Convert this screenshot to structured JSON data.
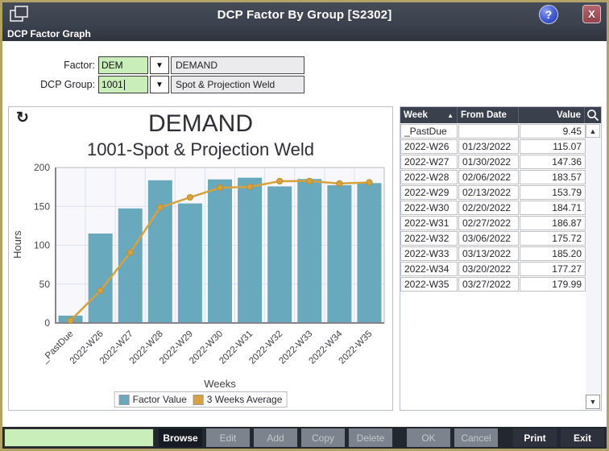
{
  "window": {
    "title": "DCP Factor By Group [S2302]",
    "banner": "DCP Factor Graph",
    "help_glyph": "?",
    "close_glyph": "X"
  },
  "form": {
    "factor": {
      "label": "Factor:",
      "code": "DEM",
      "description": "DEMAND"
    },
    "dcp_group": {
      "label": "DCP Group:",
      "code": "1001",
      "description": "Spot & Projection Weld"
    }
  },
  "chart_data": {
    "type": "bar",
    "title": "DEMAND",
    "subtitle": "1001-Spot & Projection Weld",
    "xlabel": "Weeks",
    "ylabel": "Hours",
    "ylim": [
      0,
      200
    ],
    "yticks": [
      0,
      50,
      100,
      150,
      200
    ],
    "grid": true,
    "legend_position": "bottom",
    "categories": [
      "_PastDue",
      "2022-W26",
      "2022-W27",
      "2022-W28",
      "2022-W29",
      "2022-W30",
      "2022-W31",
      "2022-W32",
      "2022-W33",
      "2022-W34",
      "2022-W35"
    ],
    "series": [
      {
        "name": "Factor Value",
        "type": "bar",
        "color": "#69a9bd",
        "values": [
          9.45,
          115.07,
          147.36,
          183.57,
          153.79,
          184.71,
          186.87,
          175.72,
          185.2,
          177.27,
          179.99
        ]
      },
      {
        "name": "3 Weeks Average",
        "type": "line",
        "color": "#d7a23c",
        "values": [
          3.15,
          41.51,
          90.63,
          148.67,
          161.57,
          174.02,
          175.12,
          182.42,
          182.6,
          179.4,
          180.82
        ]
      }
    ]
  },
  "table": {
    "columns": [
      "Week",
      "From Date",
      "Value"
    ],
    "sort_arrow": "▲",
    "rows": [
      [
        "_PastDue",
        "",
        "9.45"
      ],
      [
        "2022-W26",
        "01/23/2022",
        "115.07"
      ],
      [
        "2022-W27",
        "01/30/2022",
        "147.36"
      ],
      [
        "2022-W28",
        "02/06/2022",
        "183.57"
      ],
      [
        "2022-W29",
        "02/13/2022",
        "153.79"
      ],
      [
        "2022-W30",
        "02/20/2022",
        "184.71"
      ],
      [
        "2022-W31",
        "02/27/2022",
        "186.87"
      ],
      [
        "2022-W32",
        "03/06/2022",
        "175.72"
      ],
      [
        "2022-W33",
        "03/13/2022",
        "185.20"
      ],
      [
        "2022-W34",
        "03/20/2022",
        "177.27"
      ],
      [
        "2022-W35",
        "03/27/2022",
        "179.99"
      ]
    ]
  },
  "refresh_glyph": "↻",
  "buttons": [
    {
      "label": "Browse",
      "state": "active"
    },
    {
      "label": "Edit",
      "state": "disabled"
    },
    {
      "label": "Add",
      "state": "disabled"
    },
    {
      "label": "Copy",
      "state": "disabled"
    },
    {
      "label": "Delete",
      "state": "disabled"
    },
    {
      "label": "OK",
      "state": "disabled"
    },
    {
      "label": "Cancel",
      "state": "disabled"
    },
    {
      "label": "Print",
      "state": "enabled"
    },
    {
      "label": "Exit",
      "state": "enabled"
    }
  ],
  "status_field": {
    "value": ""
  },
  "colors": {
    "frame": "#b2a266",
    "titlebar": "#3f4450",
    "bar_fill": "#69a9bd",
    "line_color": "#d7a23c",
    "table_header_bg": "#3a404c",
    "input_green": "#c9eeb9",
    "close_red": "#a05058"
  }
}
